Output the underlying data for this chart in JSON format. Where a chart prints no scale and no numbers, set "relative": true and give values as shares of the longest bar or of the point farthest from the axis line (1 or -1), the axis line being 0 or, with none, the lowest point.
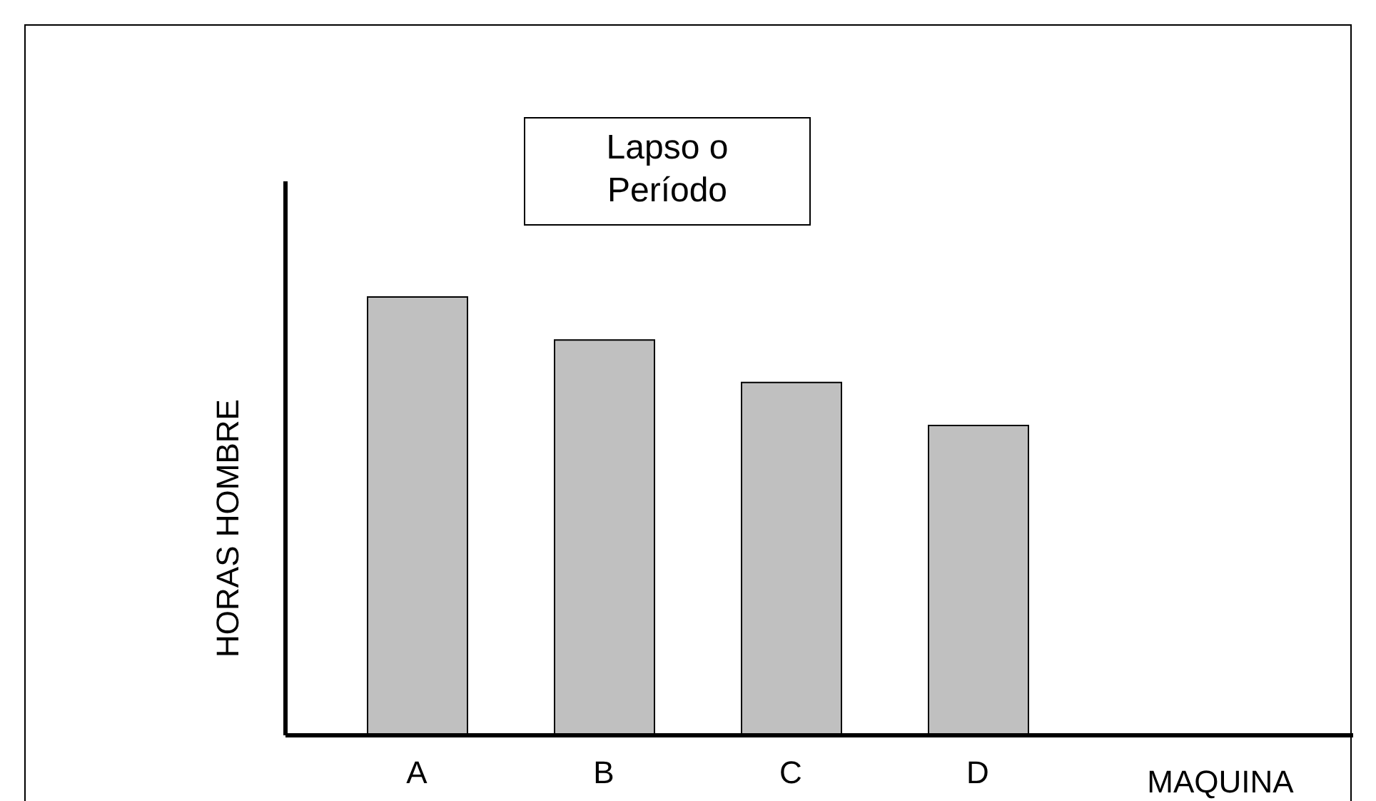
{
  "chart_data": {
    "type": "bar",
    "title": "Lapso o Período",
    "xlabel": "MAQUINA",
    "ylabel": "HORAS HOMBRE",
    "categories": [
      "A",
      "B",
      "C",
      "D"
    ],
    "values": [
      1,
      0.902,
      0.805,
      0.707
    ],
    "color": "#c0c0c0",
    "relative": true
  }
}
